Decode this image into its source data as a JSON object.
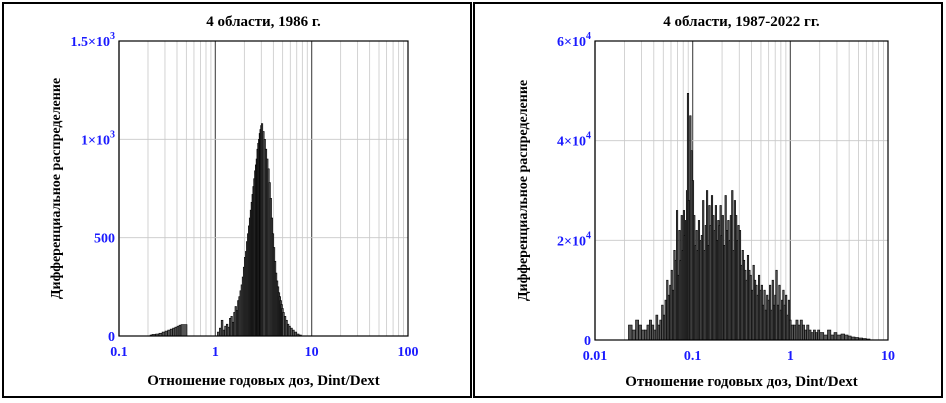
{
  "chart_data": [
    {
      "type": "bar",
      "title": "4 области, 1986 г.",
      "xlabel": "Отношение годовых доз, Dint/Dext",
      "ylabel": "Дифференциальное распределение",
      "x_scale": "log",
      "xlim": [
        0.1,
        100
      ],
      "ylim": [
        0,
        1500
      ],
      "x_ticks": [
        "0.1",
        "1",
        "10",
        "100"
      ],
      "y_ticks": [
        {
          "value": 0,
          "label": "0",
          "sup": ""
        },
        {
          "value": 500,
          "label": "500",
          "sup": ""
        },
        {
          "value": 1000,
          "label": "1×10",
          "sup": "3"
        },
        {
          "value": 1500,
          "label": "1.5×10",
          "sup": "3"
        }
      ],
      "grid": true,
      "bar_color": "#555555",
      "x": [
        0.21,
        0.22,
        0.24,
        0.26,
        0.28,
        0.3,
        0.32,
        0.34,
        0.36,
        0.38,
        0.4,
        0.42,
        0.44,
        1.05,
        1.1,
        1.15,
        1.2,
        1.25,
        1.3,
        1.35,
        1.4,
        1.45,
        1.5,
        1.55,
        1.6,
        1.65,
        1.7,
        1.75,
        1.8,
        1.85,
        1.9,
        1.95,
        2.0,
        2.05,
        2.1,
        2.15,
        2.2,
        2.25,
        2.3,
        2.35,
        2.4,
        2.45,
        2.5,
        2.55,
        2.6,
        2.65,
        2.7,
        2.75,
        2.8,
        2.85,
        2.9,
        2.95,
        3.0,
        3.1,
        3.2,
        3.3,
        3.4,
        3.5,
        3.6,
        3.7,
        3.8,
        3.9,
        4.0,
        4.1,
        4.2,
        4.3,
        4.4,
        4.5,
        4.6,
        4.7,
        4.8,
        4.9,
        5.0,
        5.2,
        5.4,
        5.6,
        5.8,
        6.0,
        6.3,
        6.6,
        7.0,
        7.4
      ],
      "values": [
        5,
        8,
        10,
        14,
        20,
        25,
        30,
        35,
        40,
        45,
        50,
        55,
        58,
        20,
        40,
        80,
        30,
        50,
        60,
        45,
        90,
        100,
        70,
        120,
        150,
        130,
        180,
        200,
        230,
        260,
        300,
        350,
        400,
        430,
        480,
        520,
        560,
        600,
        640,
        680,
        720,
        760,
        800,
        840,
        870,
        900,
        950,
        980,
        1000,
        1030,
        1050,
        1070,
        1080,
        1040,
        1000,
        950,
        900,
        850,
        780,
        700,
        600,
        520,
        450,
        380,
        320,
        280,
        250,
        220,
        200,
        180,
        160,
        140,
        120,
        100,
        80,
        60,
        50,
        40,
        30,
        20,
        10,
        5
      ]
    },
    {
      "type": "bar",
      "title": "4 области, 1987-2022 гг.",
      "xlabel": "Отношение годовых доз, Dint/Dext",
      "ylabel": "Дифференциальное распределение",
      "x_scale": "log",
      "xlim": [
        0.01,
        10
      ],
      "ylim": [
        0,
        60000
      ],
      "x_ticks": [
        "0.01",
        "0.1",
        "1",
        "10"
      ],
      "y_ticks": [
        {
          "value": 0,
          "label": "0",
          "sup": ""
        },
        {
          "value": 20000,
          "label": "2×10",
          "sup": "4"
        },
        {
          "value": 40000,
          "label": "4×10",
          "sup": "4"
        },
        {
          "value": 60000,
          "label": "6×10",
          "sup": "4"
        }
      ],
      "grid": true,
      "bar_color": "#555555",
      "x": [
        0.022,
        0.024,
        0.026,
        0.028,
        0.03,
        0.032,
        0.034,
        0.036,
        0.038,
        0.04,
        0.042,
        0.044,
        0.046,
        0.048,
        0.05,
        0.052,
        0.054,
        0.056,
        0.058,
        0.06,
        0.062,
        0.064,
        0.066,
        0.068,
        0.07,
        0.072,
        0.074,
        0.076,
        0.078,
        0.08,
        0.082,
        0.084,
        0.086,
        0.088,
        0.09,
        0.093,
        0.096,
        0.099,
        0.102,
        0.105,
        0.108,
        0.111,
        0.114,
        0.118,
        0.122,
        0.126,
        0.13,
        0.134,
        0.138,
        0.142,
        0.146,
        0.15,
        0.155,
        0.16,
        0.165,
        0.17,
        0.175,
        0.18,
        0.185,
        0.19,
        0.195,
        0.2,
        0.207,
        0.214,
        0.221,
        0.228,
        0.235,
        0.242,
        0.25,
        0.258,
        0.266,
        0.274,
        0.282,
        0.29,
        0.3,
        0.31,
        0.32,
        0.33,
        0.34,
        0.35,
        0.362,
        0.374,
        0.386,
        0.4,
        0.414,
        0.428,
        0.442,
        0.456,
        0.47,
        0.486,
        0.502,
        0.518,
        0.535,
        0.552,
        0.57,
        0.59,
        0.61,
        0.63,
        0.65,
        0.67,
        0.69,
        0.71,
        0.735,
        0.76,
        0.785,
        0.81,
        0.835,
        0.86,
        0.89,
        0.92,
        0.95,
        0.98,
        1.02,
        1.08,
        1.14,
        1.2,
        1.26,
        1.33,
        1.4,
        1.47,
        1.55,
        1.63,
        1.72,
        1.81,
        1.9,
        2.0,
        2.2,
        2.4,
        2.6,
        2.8,
        3.0,
        3.3,
        3.6,
        3.9,
        4.2,
        4.6,
        5.0,
        5.5,
        6.0
      ],
      "values": [
        3000,
        2000,
        4000,
        3000,
        2000,
        2000,
        3000,
        4000,
        3000,
        2000,
        5000,
        3000,
        4000,
        7000,
        5000,
        8000,
        12000,
        9000,
        11000,
        14000,
        10000,
        18000,
        16000,
        26000,
        13000,
        22000,
        16000,
        25000,
        18000,
        26000,
        21000,
        24000,
        30000,
        49500,
        28000,
        45000,
        38000,
        32000,
        25000,
        19000,
        22000,
        18000,
        24000,
        20000,
        21000,
        28000,
        18000,
        23000,
        30000,
        19000,
        27000,
        23000,
        29000,
        25000,
        22000,
        27000,
        20000,
        24000,
        23000,
        27000,
        21000,
        25000,
        19000,
        29000,
        22000,
        24000,
        20000,
        25000,
        30000,
        18000,
        28000,
        25000,
        20000,
        23000,
        22000,
        15000,
        18000,
        16000,
        14000,
        12000,
        17000,
        14000,
        13000,
        10000,
        15000,
        12000,
        11000,
        9000,
        13000,
        10000,
        11000,
        7000,
        10000,
        6000,
        9000,
        8000,
        11000,
        6000,
        12000,
        7000,
        9000,
        14000,
        7000,
        11000,
        6000,
        8000,
        10000,
        7000,
        9000,
        5000,
        8000,
        4000,
        3000,
        3000,
        4000,
        3000,
        4000,
        3000,
        2000,
        3000,
        2000,
        1500,
        2000,
        1500,
        2000,
        1500,
        1000,
        2000,
        1000,
        1500,
        1000,
        1200,
        1000,
        800,
        600,
        500,
        400,
        300,
        200
      ]
    }
  ]
}
